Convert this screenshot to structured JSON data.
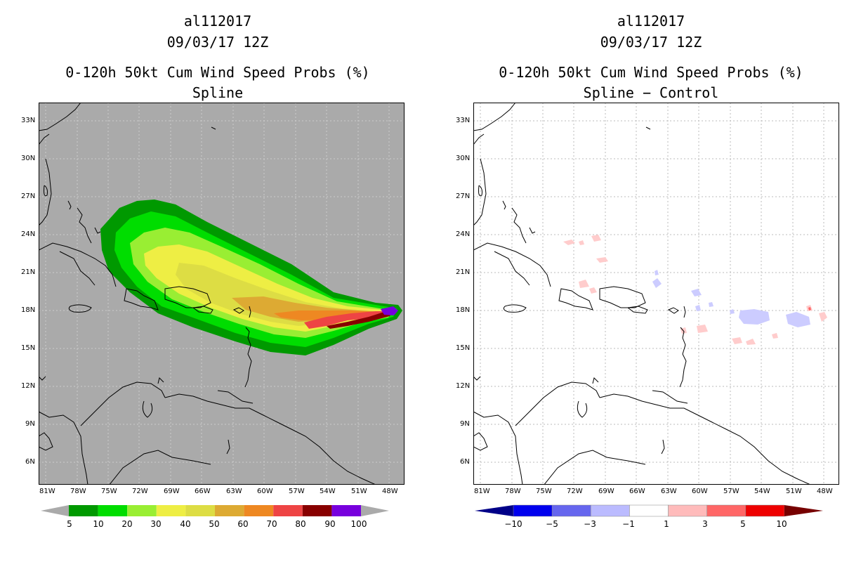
{
  "left_panel": {
    "storm_id": "al112017",
    "datetime": "09/03/17 12Z",
    "product": "0-120h 50kt Cum Wind Speed Probs (%)",
    "subtitle": "Spline",
    "background_color": "#aaaaaa",
    "colorbar_levels": [
      "5",
      "10",
      "20",
      "30",
      "40",
      "50",
      "60",
      "70",
      "80",
      "90",
      "100"
    ],
    "colorbar_colors": [
      "#009900",
      "#00dd00",
      "#99ee33",
      "#eeee44",
      "#dddd44",
      "#ddaa33",
      "#ee8822",
      "#ee4444",
      "#880000",
      "#7700dd"
    ]
  },
  "right_panel": {
    "storm_id": "al112017",
    "datetime": "09/03/17 12Z",
    "product": "0-120h 50kt Cum Wind Speed Probs (%)",
    "subtitle": "Spline − Control",
    "background_color": "#ffffff",
    "colorbar_levels": [
      "−10",
      "−5",
      "−3",
      "−1",
      "1",
      "3",
      "5",
      "10"
    ],
    "colorbar_colors": [
      "#000088",
      "#0000ee",
      "#6666ee",
      "#bbbbff",
      "#ffffff",
      "#ffbbbb",
      "#ff6666",
      "#ee0000",
      "#770000"
    ]
  },
  "axes": {
    "lat_labels": [
      "33N",
      "30N",
      "27N",
      "24N",
      "21N",
      "18N",
      "15N",
      "12N",
      "9N",
      "6N"
    ],
    "lon_labels": [
      "81W",
      "78W",
      "75W",
      "72W",
      "69W",
      "66W",
      "63W",
      "60W",
      "57W",
      "54W",
      "51W",
      "48W"
    ],
    "lat_range": [
      4.3,
      34.5
    ],
    "lon_range": [
      -82.0,
      -46.8
    ]
  }
}
